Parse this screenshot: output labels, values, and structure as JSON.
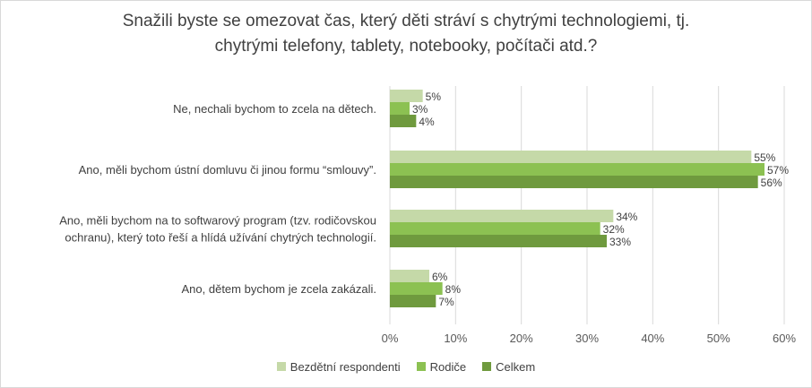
{
  "chart_data": {
    "type": "bar",
    "orientation": "horizontal",
    "title_lines": [
      "Snažili byste se omezovat čas, který děti stráví s chytrými technologiemi, tj.",
      "chytrými telefony, tablety, notebooky, počítači atd.?"
    ],
    "categories": [
      [
        "Ne, nechali bychom to zcela na dětech."
      ],
      [
        "Ano, měli bychom ústní domluvu či jinou formu “smlouvy”."
      ],
      [
        "Ano, měli bychom na to softwarový program (tzv. rodičovskou",
        "ochranu), který toto řeší a hlídá užívání chytrých technologií."
      ],
      [
        "Ano, dětem bychom je zcela zakázali."
      ]
    ],
    "series": [
      {
        "name": "Bezdětní respondenti",
        "color": "#c5d9a8",
        "values": [
          5,
          55,
          34,
          6
        ]
      },
      {
        "name": "Rodiče",
        "color": "#8cc152",
        "values": [
          3,
          57,
          32,
          8
        ]
      },
      {
        "name": "Celkem",
        "color": "#6f9a3e",
        "values": [
          4,
          56,
          33,
          7
        ]
      }
    ],
    "value_suffix": "%",
    "xlim": [
      0,
      60
    ],
    "xticks": [
      "0%",
      "10%",
      "20%",
      "30%",
      "40%",
      "50%",
      "60%"
    ],
    "grid": "vertical",
    "legend_position": "bottom"
  }
}
